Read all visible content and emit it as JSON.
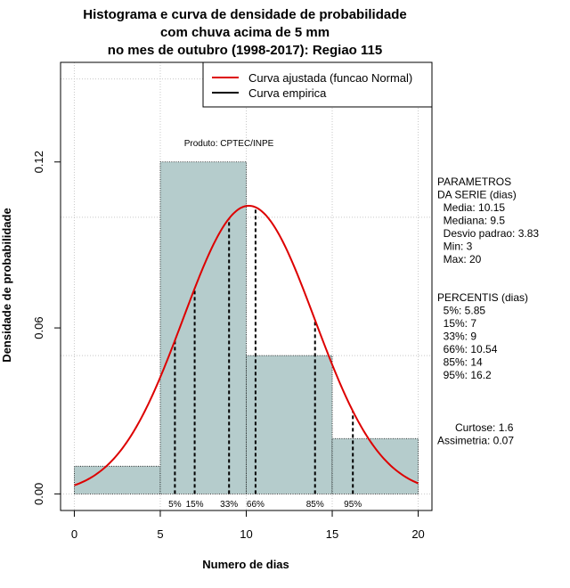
{
  "chart_data": {
    "type": "bar",
    "title_lines": [
      "Histograma e curva de densidade de probabilidade",
      "com chuva acima de 5 mm",
      "no mes de outubro (1998-2017): Regiao 115"
    ],
    "xlabel": "Numero de dias",
    "ylabel": "Densidade de probabilidade",
    "xlim": [
      -0.8,
      20.8
    ],
    "ylim": [
      -0.006,
      0.156
    ],
    "x_ticks": [
      0,
      5,
      10,
      15,
      20
    ],
    "y_ticks": [
      0.0,
      0.06,
      0.12
    ],
    "y_tick_labels": [
      "0.00",
      "0.06",
      "0.12"
    ],
    "grid": true,
    "bins": [
      {
        "start": 0,
        "end": 5,
        "density": 0.01
      },
      {
        "start": 5,
        "end": 10,
        "density": 0.12
      },
      {
        "start": 10,
        "end": 15,
        "density": 0.05
      },
      {
        "start": 15,
        "end": 20,
        "density": 0.02
      }
    ],
    "normal_curve": {
      "mean": 10.15,
      "sd": 3.83,
      "from": 0,
      "to": 20,
      "color": "#dd0000"
    },
    "percentiles": [
      {
        "label": "5%",
        "value": 5.85
      },
      {
        "label": "15%",
        "value": 7
      },
      {
        "label": "33%",
        "value": 9
      },
      {
        "label": "66%",
        "value": 10.54
      },
      {
        "label": "85%",
        "value": 14
      },
      {
        "label": "95%",
        "value": 16.2
      }
    ],
    "legend": [
      {
        "label": "Curva ajustada (funcao Normal)",
        "color": "#dd0000"
      },
      {
        "label": "Curva empirica",
        "color": "#000000"
      }
    ],
    "legend_position": "top-right",
    "annotation": "Produto: CPTEC/INPE",
    "bar_color": "#b5cccc"
  },
  "side_panel": {
    "params_lines": [
      "PARAMETROS",
      "DA SERIE (dias)",
      "  Media: 10.15",
      "  Mediana: 9.5",
      "  Desvio padrao: 3.83",
      "  Min: 3",
      "  Max: 20"
    ],
    "percentis_lines": [
      "PERCENTIS (dias)",
      "  5%: 5.85",
      "  15%: 7",
      "  33%: 9",
      "  66%: 10.54",
      "  85%: 14",
      "  95%: 16.2"
    ],
    "stats_lines": [
      "      Curtose: 1.6",
      "Assimetria: 0.07"
    ]
  }
}
